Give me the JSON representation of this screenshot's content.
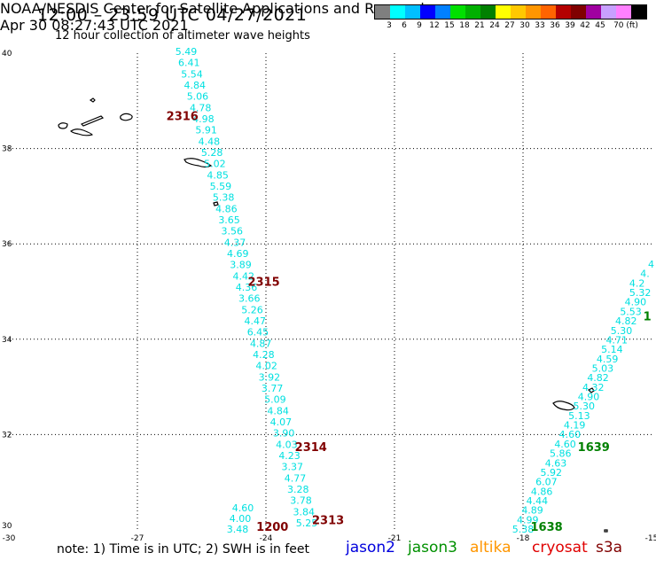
{
  "header": {
    "title": "12:00 – 23:59 UTC 04/27/2021",
    "subtitle": "12 hour collection of altimeter wave heights"
  },
  "legend": {
    "colors": [
      "#7f7f7f",
      "#00ffff",
      "#00bfff",
      "#0000ff",
      "#0080ff",
      "#00e000",
      "#00b000",
      "#008000",
      "#ffff00",
      "#ffc800",
      "#ff9600",
      "#ff6400",
      "#b40000",
      "#800000",
      "#a000a0",
      "#c8a0ff",
      "#ff80ff",
      "#000000"
    ],
    "labels": [
      "3",
      "6",
      "9",
      "12",
      "15",
      "18",
      "21",
      "24",
      "27",
      "30",
      "33",
      "36",
      "39",
      "42",
      "45",
      "70 (ft)"
    ]
  },
  "axes": {
    "lon_ticks": [
      "-30",
      "-27",
      "-24",
      "-21",
      "-18",
      "-15"
    ],
    "lat_ticks": [
      "40",
      "38",
      "36",
      "34",
      "32",
      "30"
    ]
  },
  "tracks": [
    {
      "name": "west-track",
      "color": "#00e0e0",
      "values": [
        "5.49",
        "6.41",
        "5.54",
        "4.84",
        "5.06",
        "4.78",
        "4.98",
        "5.91",
        "4.48",
        "5.28",
        "5.02",
        "4.85",
        "5.59",
        "5.38",
        "4.86",
        "3.65",
        "3.56",
        "4.37",
        "4.69",
        "3.89",
        "4.42",
        "4.36",
        "3.66",
        "5.26",
        "4.47",
        "6.45",
        "4.87",
        "4.28",
        "4.02",
        "3.92",
        "3.77",
        "5.09",
        "4.84",
        "4.07",
        "3.90",
        "4.03",
        "4.23",
        "3.37",
        "4.77",
        "3.28",
        "3.78",
        "3.84",
        "5.25"
      ]
    },
    {
      "name": "west-track-tail",
      "color": "#00e0e0",
      "values": [
        "4.60",
        "4.00",
        "3.48"
      ]
    },
    {
      "name": "east-track",
      "color": "#00e0e0",
      "values": [
        "4",
        "4.",
        "4.2",
        "5.32",
        "4.90",
        "5.53",
        "4.82",
        "5.30",
        "4.71",
        "5.14",
        "4.59",
        "5.03",
        "4.82",
        "4.32",
        "4.90",
        "5.30",
        "5.13",
        "4.19",
        "4.60",
        "4.60",
        "5.86",
        "4.63",
        "5.92",
        "6.07",
        "4.86",
        "4.44",
        "4.89",
        "4.99",
        "5.38"
      ]
    }
  ],
  "time_labels": [
    {
      "text": "2316",
      "color": "#800000",
      "lon": -25.95,
      "lat": 38.6
    },
    {
      "text": "2315",
      "color": "#800000",
      "lon": -24.05,
      "lat": 35.12
    },
    {
      "text": "2314",
      "color": "#800000",
      "lon": -22.95,
      "lat": 31.65
    },
    {
      "text": "2313",
      "color": "#800000",
      "lon": -22.55,
      "lat": 30.12
    },
    {
      "text": "1200",
      "color": "#800000",
      "lon": -23.85,
      "lat": 29.98
    },
    {
      "text": "1639",
      "color": "#008000",
      "lon": -16.35,
      "lat": 31.65
    },
    {
      "text": "1638",
      "color": "#008000",
      "lon": -17.45,
      "lat": 29.98
    },
    {
      "text": "1",
      "color": "#008000",
      "lon": -15.1,
      "lat": 34.4
    }
  ],
  "footer": {
    "note": "note: 1) Time is in UTC; 2) SWH is in feet",
    "satellites": [
      {
        "name": "jason2",
        "color": "#0000dd"
      },
      {
        "name": "jason3",
        "color": "#009000"
      },
      {
        "name": "altika",
        "color": "#ff9600"
      },
      {
        "name": "cryosat",
        "color": "#e00000"
      },
      {
        "name": "s3a",
        "color": "#800000"
      }
    ],
    "credit_left": "NOAA/NESDIS Center for Satellite Applications and Research",
    "credit_right": "Apr 30 08:27:43 UTC 2021"
  }
}
